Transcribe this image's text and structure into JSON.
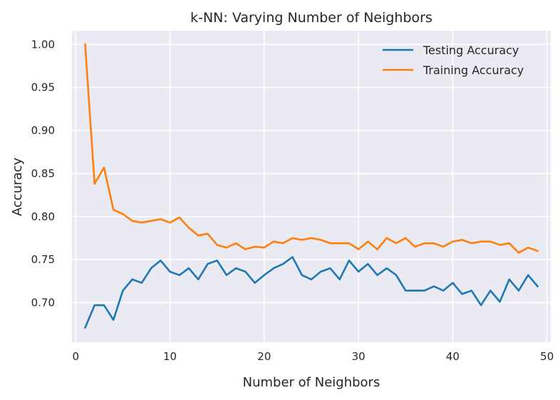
{
  "chart_data": {
    "type": "line",
    "title": "k-NN: Varying Number of Neighbors",
    "xlabel": "Number of Neighbors",
    "ylabel": "Accuracy",
    "xlim": [
      -0.4,
      50.4
    ],
    "ylim": [
      0.654,
      1.016
    ],
    "xticks": [
      0,
      10,
      20,
      30,
      40,
      50
    ],
    "yticks": [
      0.7,
      0.75,
      0.8,
      0.85,
      0.9,
      0.95,
      1.0
    ],
    "xtick_labels": [
      "0",
      "10",
      "20",
      "30",
      "40",
      "50"
    ],
    "ytick_labels": [
      "0.70",
      "0.75",
      "0.80",
      "0.85",
      "0.90",
      "0.95",
      "1.00"
    ],
    "grid": true,
    "legend_position": "top-right",
    "x": [
      1,
      2,
      3,
      4,
      5,
      6,
      7,
      8,
      9,
      10,
      11,
      12,
      13,
      14,
      15,
      16,
      17,
      18,
      19,
      20,
      21,
      22,
      23,
      24,
      25,
      26,
      27,
      28,
      29,
      30,
      31,
      32,
      33,
      34,
      35,
      36,
      37,
      38,
      39,
      40,
      41,
      42,
      43,
      44,
      45,
      46,
      47,
      48,
      49
    ],
    "series": [
      {
        "name": "Testing Accuracy",
        "color": "#1f77b4",
        "values": [
          0.671,
          0.697,
          0.697,
          0.68,
          0.714,
          0.727,
          0.723,
          0.74,
          0.749,
          0.736,
          0.732,
          0.74,
          0.727,
          0.745,
          0.749,
          0.732,
          0.74,
          0.736,
          0.723,
          0.732,
          0.74,
          0.745,
          0.753,
          0.732,
          0.727,
          0.736,
          0.74,
          0.727,
          0.749,
          0.736,
          0.745,
          0.732,
          0.74,
          0.732,
          0.714,
          0.714,
          0.714,
          0.719,
          0.714,
          0.723,
          0.71,
          0.714,
          0.697,
          0.714,
          0.701,
          0.727,
          0.714,
          0.732,
          0.719
        ]
      },
      {
        "name": "Training Accuracy",
        "color": "#ff7f0e",
        "values": [
          1.0,
          0.838,
          0.857,
          0.808,
          0.803,
          0.795,
          0.793,
          0.795,
          0.797,
          0.793,
          0.799,
          0.787,
          0.778,
          0.78,
          0.767,
          0.764,
          0.769,
          0.762,
          0.765,
          0.764,
          0.771,
          0.769,
          0.775,
          0.773,
          0.775,
          0.773,
          0.769,
          0.769,
          0.769,
          0.762,
          0.771,
          0.762,
          0.775,
          0.769,
          0.775,
          0.765,
          0.769,
          0.769,
          0.765,
          0.771,
          0.773,
          0.769,
          0.771,
          0.771,
          0.767,
          0.769,
          0.758,
          0.764,
          0.76
        ]
      }
    ]
  }
}
